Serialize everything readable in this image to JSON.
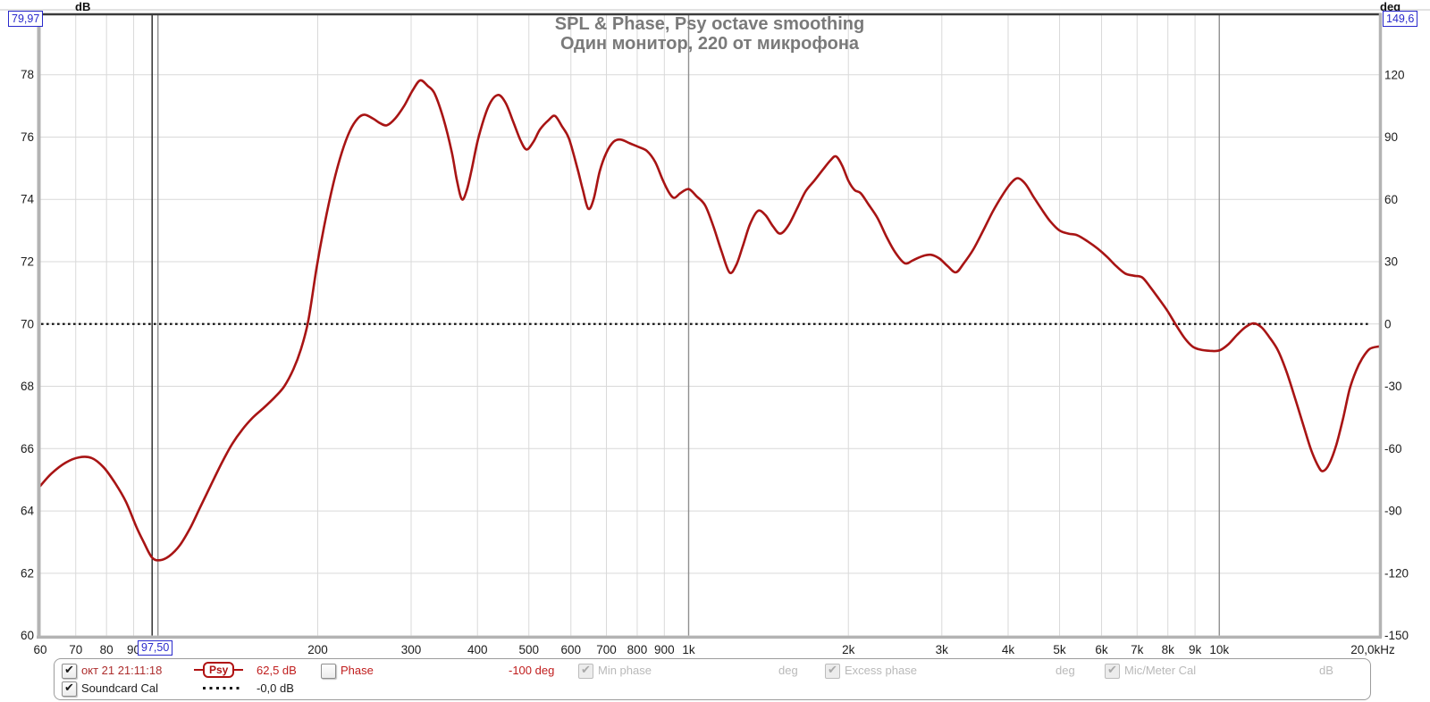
{
  "header": {
    "left_unit": "dB",
    "left_axis_max": "79,97",
    "right_unit": "deg",
    "right_axis_max": "149,6",
    "title_line1": "SPL & Phase, Psy octave smoothing",
    "title_line2": "Один монитор, 220 от микрофона"
  },
  "cursor": {
    "freq_label": "97,50",
    "freq_hz": 97.5,
    "spl_label": "62,5 dB"
  },
  "colors": {
    "trace_red": "#a81414",
    "soundcard_black": "#161616",
    "grid": "#d9d9d9",
    "grid_decade": "#8f8f8f",
    "frame_gray": "#b3b3b3",
    "frame_dark": "#3b3b3b",
    "cursor_blue": "#2929cc",
    "title_gray": "#7a7a7a"
  },
  "axes": {
    "x": {
      "scale": "log",
      "min_hz": 60,
      "max_hz": 20000,
      "ticks": [
        {
          "f": 60,
          "label": "60"
        },
        {
          "f": 70,
          "label": "70"
        },
        {
          "f": 80,
          "label": "80"
        },
        {
          "f": 90,
          "label": "90"
        },
        {
          "f": 100,
          "label": "",
          "decade": true
        },
        {
          "f": 200,
          "label": "200"
        },
        {
          "f": 300,
          "label": "300"
        },
        {
          "f": 400,
          "label": "400"
        },
        {
          "f": 500,
          "label": "500"
        },
        {
          "f": 600,
          "label": "600"
        },
        {
          "f": 700,
          "label": "700"
        },
        {
          "f": 800,
          "label": "800"
        },
        {
          "f": 900,
          "label": "900"
        },
        {
          "f": 1000,
          "label": "1k",
          "decade": true
        },
        {
          "f": 2000,
          "label": "2k"
        },
        {
          "f": 3000,
          "label": "3k"
        },
        {
          "f": 4000,
          "label": "4k"
        },
        {
          "f": 5000,
          "label": "5k"
        },
        {
          "f": 6000,
          "label": "6k"
        },
        {
          "f": 7000,
          "label": "7k"
        },
        {
          "f": 8000,
          "label": "8k"
        },
        {
          "f": 9000,
          "label": "9k"
        },
        {
          "f": 10000,
          "label": "10k",
          "decade": true
        },
        {
          "f": 20000,
          "label": "20,0kHz"
        }
      ]
    },
    "y_left": {
      "unit": "dB",
      "max": 79.97,
      "min": 60,
      "tick_values": [
        78,
        76,
        74,
        72,
        70,
        68,
        66,
        64,
        62,
        60
      ],
      "tick_labels": [
        "78",
        "76",
        "74",
        "72",
        "70",
        "68",
        "66",
        "64",
        "62",
        "60"
      ]
    },
    "y_right": {
      "unit": "deg",
      "max": 149.6,
      "min": -150,
      "tick_values": [
        120,
        90,
        60,
        30,
        0,
        -30,
        -60,
        -90,
        -120,
        -150
      ],
      "tick_labels": [
        "120",
        "90",
        "60",
        "30",
        "0",
        "-30",
        "-60",
        "-90",
        "-120",
        "-150"
      ]
    }
  },
  "legend": {
    "measurement": {
      "checked": true,
      "enabled": true,
      "timestamp": "окт 21 21:11:18",
      "smoothing_badge": "Psy",
      "spl_value": "62,5 dB"
    },
    "phase": {
      "checked": false,
      "enabled": true,
      "label": "Phase",
      "value": "-100 deg"
    },
    "min_phase": {
      "checked": true,
      "enabled": false,
      "label": "Min phase",
      "unit": "deg"
    },
    "excess_phase": {
      "checked": true,
      "enabled": false,
      "label": "Excess phase",
      "unit": "deg"
    },
    "mic_cal": {
      "checked": true,
      "enabled": false,
      "label": "Mic/Meter Cal",
      "unit": "dB"
    },
    "soundcard": {
      "checked": true,
      "enabled": true,
      "label": "Soundcard Cal",
      "sample_value": "-0,0 dB"
    }
  },
  "chart_data": {
    "type": "line",
    "title": "SPL & Phase, Psy octave smoothing",
    "subtitle": "Один монитор, 220 от микрофона",
    "x_axis": {
      "label": "Hz",
      "scale": "log",
      "min": 60,
      "max": 20000
    },
    "y_left_axis": {
      "label": "dB",
      "min": 60,
      "max": 79.97
    },
    "y_right_axis": {
      "label": "deg",
      "min": -150,
      "max": 149.6
    },
    "legend_position": "bottom",
    "grid": true,
    "series": [
      {
        "name": "окт 21 21:11:18",
        "smoothing": "Psy",
        "unit": "dB SPL",
        "color": "#a81414",
        "style": "solid",
        "points": [
          [
            60,
            64.8
          ],
          [
            63,
            65.2
          ],
          [
            67,
            65.55
          ],
          [
            71,
            65.72
          ],
          [
            75,
            65.7
          ],
          [
            79,
            65.4
          ],
          [
            83,
            64.9
          ],
          [
            87,
            64.3
          ],
          [
            91,
            63.5
          ],
          [
            94,
            63.0
          ],
          [
            97.5,
            62.5
          ],
          [
            101,
            62.42
          ],
          [
            105,
            62.55
          ],
          [
            110,
            62.9
          ],
          [
            115,
            63.45
          ],
          [
            120,
            64.1
          ],
          [
            126,
            64.85
          ],
          [
            132,
            65.55
          ],
          [
            138,
            66.15
          ],
          [
            144,
            66.6
          ],
          [
            151,
            67.0
          ],
          [
            158,
            67.3
          ],
          [
            166,
            67.65
          ],
          [
            173,
            68.0
          ],
          [
            180,
            68.55
          ],
          [
            186,
            69.2
          ],
          [
            192,
            70.1
          ],
          [
            199,
            71.8
          ],
          [
            206,
            73.2
          ],
          [
            214,
            74.5
          ],
          [
            222,
            75.5
          ],
          [
            230,
            76.2
          ],
          [
            238,
            76.6
          ],
          [
            245,
            76.72
          ],
          [
            254,
            76.6
          ],
          [
            262,
            76.45
          ],
          [
            270,
            76.38
          ],
          [
            280,
            76.6
          ],
          [
            291,
            77.0
          ],
          [
            302,
            77.5
          ],
          [
            312,
            77.82
          ],
          [
            322,
            77.65
          ],
          [
            332,
            77.4
          ],
          [
            345,
            76.6
          ],
          [
            358,
            75.5
          ],
          [
            366,
            74.6
          ],
          [
            374,
            74.0
          ],
          [
            382,
            74.3
          ],
          [
            390,
            74.95
          ],
          [
            402,
            76.0
          ],
          [
            420,
            77.0
          ],
          [
            437,
            77.35
          ],
          [
            452,
            77.1
          ],
          [
            467,
            76.5
          ],
          [
            482,
            75.9
          ],
          [
            495,
            75.6
          ],
          [
            510,
            75.85
          ],
          [
            525,
            76.25
          ],
          [
            545,
            76.55
          ],
          [
            560,
            76.68
          ],
          [
            577,
            76.35
          ],
          [
            595,
            75.95
          ],
          [
            617,
            75.0
          ],
          [
            632,
            74.3
          ],
          [
            647,
            73.7
          ],
          [
            662,
            74.0
          ],
          [
            680,
            74.9
          ],
          [
            700,
            75.5
          ],
          [
            722,
            75.85
          ],
          [
            745,
            75.92
          ],
          [
            775,
            75.8
          ],
          [
            805,
            75.68
          ],
          [
            835,
            75.55
          ],
          [
            865,
            75.2
          ],
          [
            895,
            74.6
          ],
          [
            920,
            74.2
          ],
          [
            940,
            74.05
          ],
          [
            965,
            74.2
          ],
          [
            1000,
            74.33
          ],
          [
            1035,
            74.1
          ],
          [
            1075,
            73.8
          ],
          [
            1115,
            73.1
          ],
          [
            1155,
            72.3
          ],
          [
            1195,
            71.65
          ],
          [
            1230,
            71.9
          ],
          [
            1265,
            72.5
          ],
          [
            1305,
            73.2
          ],
          [
            1350,
            73.63
          ],
          [
            1395,
            73.5
          ],
          [
            1440,
            73.15
          ],
          [
            1487,
            72.9
          ],
          [
            1540,
            73.15
          ],
          [
            1600,
            73.7
          ],
          [
            1660,
            74.25
          ],
          [
            1725,
            74.6
          ],
          [
            1790,
            74.95
          ],
          [
            1850,
            75.25
          ],
          [
            1895,
            75.38
          ],
          [
            1945,
            75.1
          ],
          [
            2000,
            74.6
          ],
          [
            2055,
            74.3
          ],
          [
            2110,
            74.2
          ],
          [
            2180,
            73.85
          ],
          [
            2270,
            73.4
          ],
          [
            2360,
            72.8
          ],
          [
            2450,
            72.3
          ],
          [
            2555,
            71.95
          ],
          [
            2650,
            72.05
          ],
          [
            2760,
            72.18
          ],
          [
            2865,
            72.22
          ],
          [
            2970,
            72.1
          ],
          [
            3080,
            71.85
          ],
          [
            3190,
            71.66
          ],
          [
            3300,
            71.95
          ],
          [
            3440,
            72.4
          ],
          [
            3590,
            73.0
          ],
          [
            3740,
            73.6
          ],
          [
            3890,
            74.1
          ],
          [
            4040,
            74.5
          ],
          [
            4170,
            74.68
          ],
          [
            4310,
            74.5
          ],
          [
            4460,
            74.1
          ],
          [
            4620,
            73.7
          ],
          [
            4800,
            73.3
          ],
          [
            5000,
            73.0
          ],
          [
            5200,
            72.9
          ],
          [
            5400,
            72.85
          ],
          [
            5650,
            72.65
          ],
          [
            5900,
            72.42
          ],
          [
            6150,
            72.15
          ],
          [
            6400,
            71.85
          ],
          [
            6650,
            71.62
          ],
          [
            6900,
            71.55
          ],
          [
            7150,
            71.5
          ],
          [
            7400,
            71.2
          ],
          [
            7700,
            70.8
          ],
          [
            8000,
            70.4
          ],
          [
            8300,
            69.95
          ],
          [
            8600,
            69.55
          ],
          [
            8900,
            69.28
          ],
          [
            9200,
            69.18
          ],
          [
            9600,
            69.14
          ],
          [
            10000,
            69.15
          ],
          [
            10400,
            69.35
          ],
          [
            10800,
            69.65
          ],
          [
            11200,
            69.9
          ],
          [
            11600,
            70.02
          ],
          [
            12000,
            69.9
          ],
          [
            12400,
            69.6
          ],
          [
            12900,
            69.15
          ],
          [
            13400,
            68.45
          ],
          [
            13900,
            67.6
          ],
          [
            14400,
            66.75
          ],
          [
            14900,
            65.95
          ],
          [
            15400,
            65.4
          ],
          [
            15700,
            65.28
          ],
          [
            16100,
            65.5
          ],
          [
            16600,
            66.1
          ],
          [
            17100,
            66.95
          ],
          [
            17600,
            67.9
          ],
          [
            18100,
            68.5
          ],
          [
            18600,
            68.9
          ],
          [
            19200,
            69.2
          ],
          [
            20000,
            69.28
          ]
        ]
      },
      {
        "name": "Soundcard Cal",
        "unit": "dB",
        "color": "#161616",
        "style": "dotted",
        "display_level_db": 70,
        "value_label": "-0,0 dB",
        "points": [
          [
            60,
            70
          ],
          [
            20000,
            70
          ]
        ]
      }
    ],
    "cursor": {
      "freq_hz": 97.5,
      "freq_label": "97,50",
      "value_label": "62,5 dB"
    }
  }
}
